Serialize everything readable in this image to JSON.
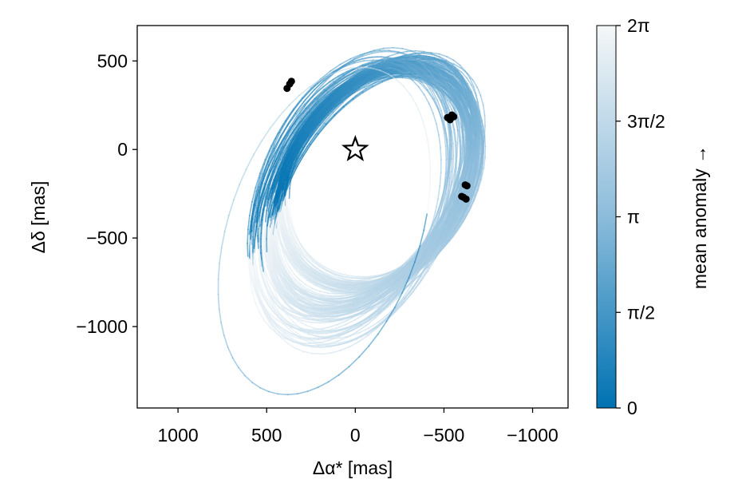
{
  "chart_data": {
    "type": "line",
    "description_series": "orbit posterior draws (ellipses) colored by mean anomaly",
    "xlabel": "Δα* [mas]",
    "ylabel": "Δδ [mas]",
    "xlim": [
      1230,
      -1200
    ],
    "ylim": [
      -1460,
      700
    ],
    "x_ticks": [
      1000,
      500,
      0,
      -500,
      -1000
    ],
    "x_tick_labels": [
      "1000",
      "500",
      "0",
      "−500",
      "−1000"
    ],
    "y_ticks": [
      500,
      0,
      -500,
      -1000
    ],
    "y_tick_labels": [
      "500",
      "0",
      "−500",
      "−1000"
    ],
    "grid": false,
    "star_marker": {
      "x": 0,
      "y": 0,
      "symbol": "star"
    },
    "observations": [
      {
        "x": 370,
        "y": 370
      },
      {
        "x": 385,
        "y": 345
      },
      {
        "x": 360,
        "y": 385
      },
      {
        "x": -520,
        "y": 180
      },
      {
        "x": -545,
        "y": 195
      },
      {
        "x": -535,
        "y": 168
      },
      {
        "x": -555,
        "y": 185
      },
      {
        "x": -620,
        "y": -200
      },
      {
        "x": -630,
        "y": -205
      },
      {
        "x": -610,
        "y": -270
      },
      {
        "x": -625,
        "y": -280
      },
      {
        "x": -600,
        "y": -265
      }
    ],
    "orbit_families": [
      {
        "name": "inner",
        "count": 45,
        "cx_range": [
          -160,
          -110
        ],
        "cy_range": [
          -175,
          -140
        ],
        "rx_range": [
          480,
          520
        ],
        "ry_range": [
          600,
          700
        ],
        "rot_range": [
          28,
          38
        ]
      },
      {
        "name": "mid",
        "count": 55,
        "cx_range": [
          -120,
          -60
        ],
        "cy_range": [
          -240,
          -170
        ],
        "rx_range": [
          440,
          500
        ],
        "ry_range": [
          700,
          830
        ],
        "rot_range": [
          28,
          36
        ]
      },
      {
        "name": "outer",
        "count": 18,
        "cx_range": [
          -40,
          40
        ],
        "cy_range": [
          -320,
          -240
        ],
        "rx_range": [
          470,
          520
        ],
        "ry_range": [
          780,
          880
        ],
        "rot_range": [
          16,
          28
        ]
      }
    ],
    "extreme_orbit": {
      "cx": 175,
      "cy": -460,
      "rx": 540,
      "ry": 960,
      "rot": 19
    },
    "colorbar": {
      "label": "mean anomaly →",
      "range": [
        0,
        6.2832
      ],
      "tick_labels": [
        "0",
        "π/2",
        "π",
        "3π/2",
        "2π"
      ],
      "color_low": "#0072b2",
      "color_high": "#f5f7f8"
    }
  }
}
